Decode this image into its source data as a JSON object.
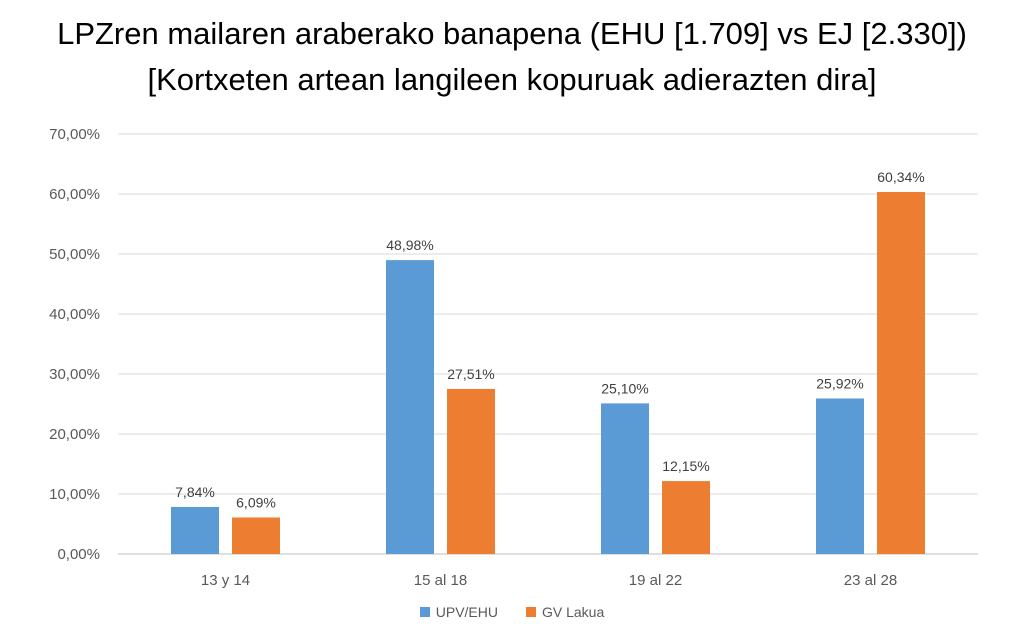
{
  "chart_data": {
    "type": "bar",
    "title": "LPZren mailaren araberako banapena (EHU [1.709] vs EJ [2.330])",
    "subtitle": "[Kortxeten artean langileen kopuruak adierazten dira]",
    "categories": [
      "13 y 14",
      "15 al 18",
      "19 al 22",
      "23 al 28"
    ],
    "series": [
      {
        "name": "UPV/EHU",
        "values": [
          7.84,
          48.98,
          25.1,
          25.92
        ],
        "labels": [
          "7,84%",
          "48,98%",
          "25,10%",
          "25,92%"
        ],
        "color": "#5B9BD5"
      },
      {
        "name": "GV Lakua",
        "values": [
          6.09,
          27.51,
          12.15,
          60.34
        ],
        "labels": [
          "6,09%",
          "27,51%",
          "12,15%",
          "60,34%"
        ],
        "color": "#ED7D31"
      }
    ],
    "yticks": [
      "0,00%",
      "10,00%",
      "20,00%",
      "30,00%",
      "40,00%",
      "50,00%",
      "60,00%",
      "70,00%"
    ],
    "ylim": [
      0,
      70
    ],
    "grid": true,
    "legend": "bottom"
  }
}
